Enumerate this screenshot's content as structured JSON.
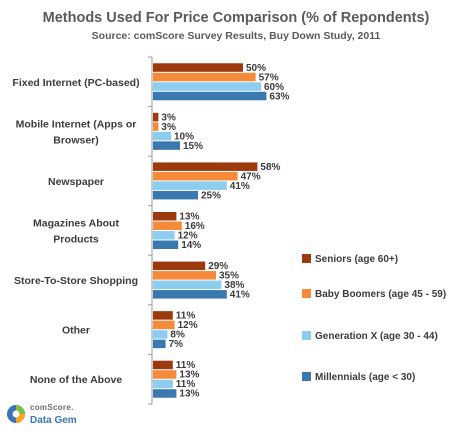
{
  "chart_data": {
    "type": "bar",
    "orientation": "horizontal",
    "title": "Methods Used For Price Comparison (% of Repondents)",
    "subtitle": "Source: comScore Survey Results, Buy Down Study, 2011",
    "categories": [
      [
        "Fixed Internet (PC-based)"
      ],
      [
        "Mobile Internet (Apps or",
        "Browser)"
      ],
      [
        "Newspaper"
      ],
      [
        "Magazines About",
        "Products"
      ],
      [
        "Store-To-Store Shopping"
      ],
      [
        "Other"
      ],
      [
        "None of the Above"
      ]
    ],
    "series": [
      {
        "name": "Seniors (age 60+)",
        "color": "#9c3a0e",
        "values": [
          50,
          3,
          58,
          13,
          29,
          11,
          11
        ]
      },
      {
        "name": "Baby Boomers (age 45 - 59)",
        "color": "#f58b3a",
        "values": [
          57,
          3,
          47,
          16,
          35,
          12,
          13
        ]
      },
      {
        "name": "Generation X (age 30 - 44)",
        "color": "#8ccdf0",
        "values": [
          60,
          10,
          41,
          12,
          38,
          8,
          11
        ]
      },
      {
        "name": "Millennials (age < 30)",
        "color": "#3a78b0",
        "values": [
          63,
          15,
          25,
          14,
          41,
          7,
          13
        ]
      }
    ],
    "value_suffix": "%",
    "xlim": [
      0,
      100
    ],
    "grid": false,
    "legend_position": "right"
  },
  "branding": {
    "line1": "comScore.",
    "line2": "Data Gem",
    "logo_icon": "comscore-logo-icon"
  }
}
